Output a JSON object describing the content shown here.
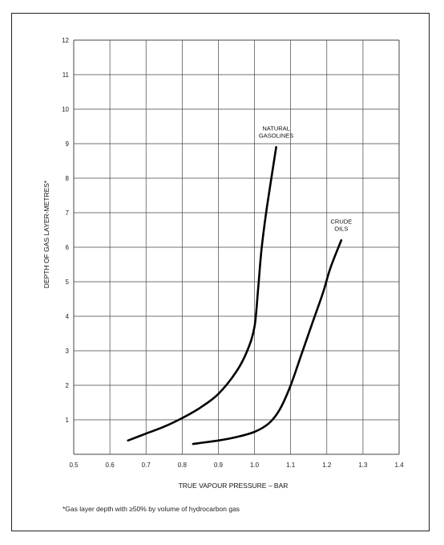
{
  "chart_data": {
    "type": "line",
    "title": "",
    "xlabel": "TRUE VAPOUR PRESSURE – BAR",
    "ylabel": "DEPTH OF GAS LAYER-METRES*",
    "xlim": [
      0.5,
      1.4
    ],
    "ylim": [
      0,
      12
    ],
    "x_ticks": [
      "0.5",
      "0.6",
      "0.7",
      "0.8",
      "0.9",
      "1.0",
      "1.1",
      "1.2",
      "1.3",
      "1.4"
    ],
    "y_ticks": [
      "",
      "1",
      "2",
      "3",
      "4",
      "5",
      "6",
      "7",
      "8",
      "9",
      "10",
      "11",
      "12"
    ],
    "grid": true,
    "series": [
      {
        "name": "NATURAL GASOLINES",
        "label_lines": [
          "NATURAL",
          "GASOLINES"
        ],
        "color": "#000000",
        "x": [
          0.65,
          0.7,
          0.75,
          0.8,
          0.85,
          0.9,
          0.95,
          0.98,
          1.0,
          1.01,
          1.02,
          1.035,
          1.06
        ],
        "y": [
          0.4,
          0.6,
          0.8,
          1.05,
          1.35,
          1.75,
          2.4,
          3.0,
          3.7,
          4.8,
          6.0,
          7.2,
          8.9
        ]
      },
      {
        "name": "CRUDE OILS",
        "label_lines": [
          "CRUDE",
          "OILS"
        ],
        "color": "#000000",
        "x": [
          0.83,
          0.9,
          0.95,
          1.0,
          1.04,
          1.07,
          1.1,
          1.13,
          1.16,
          1.19,
          1.21,
          1.24
        ],
        "y": [
          0.3,
          0.4,
          0.5,
          0.65,
          0.9,
          1.3,
          2.0,
          2.9,
          3.8,
          4.7,
          5.4,
          6.2
        ]
      }
    ]
  },
  "footnote": "*Gas layer depth with ≥50% by volume of hydrocarbon gas"
}
